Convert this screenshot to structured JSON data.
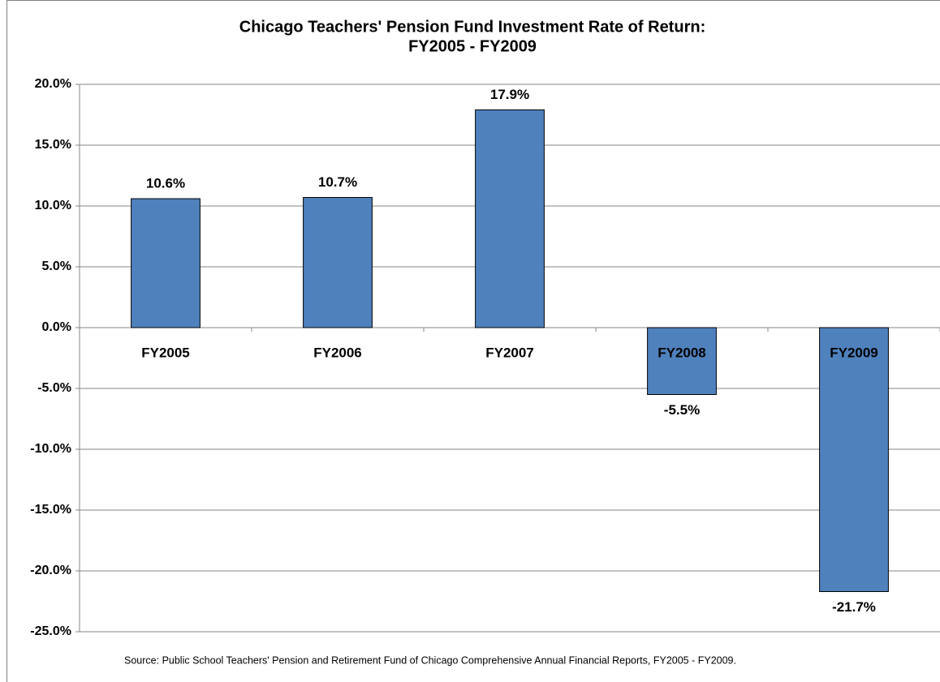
{
  "chart_data": {
    "type": "bar",
    "title": "Chicago Teachers' Pension Fund Investment Rate of Return:",
    "subtitle": "FY2005 - FY2009",
    "categories": [
      "FY2005",
      "FY2006",
      "FY2007",
      "FY2008",
      "FY2009"
    ],
    "values": [
      10.6,
      10.7,
      17.9,
      -5.5,
      -21.7
    ],
    "value_labels": [
      "10.6%",
      "10.7%",
      "17.9%",
      "-5.5%",
      "-21.7%"
    ],
    "color": "#4f81bd",
    "ylim": [
      -25,
      20
    ],
    "yticks": [
      {
        "value": -25,
        "label": "-25.0%"
      },
      {
        "value": -20,
        "label": "-20.0%"
      },
      {
        "value": -15,
        "label": "-15.0%"
      },
      {
        "value": -10,
        "label": "-10.0%"
      },
      {
        "value": -5,
        "label": "-5.0%"
      },
      {
        "value": 0,
        "label": "0.0%"
      },
      {
        "value": 5,
        "label": "5.0%"
      },
      {
        "value": 10,
        "label": "10.0%"
      },
      {
        "value": 15,
        "label": "15.0%"
      },
      {
        "value": 20,
        "label": "20.0%"
      }
    ],
    "grid": true,
    "source": "Source: Public School Teachers' Pension and Retirement Fund of Chicago Comprehensive Annual Financial Reports, FY2005 - FY2009."
  }
}
